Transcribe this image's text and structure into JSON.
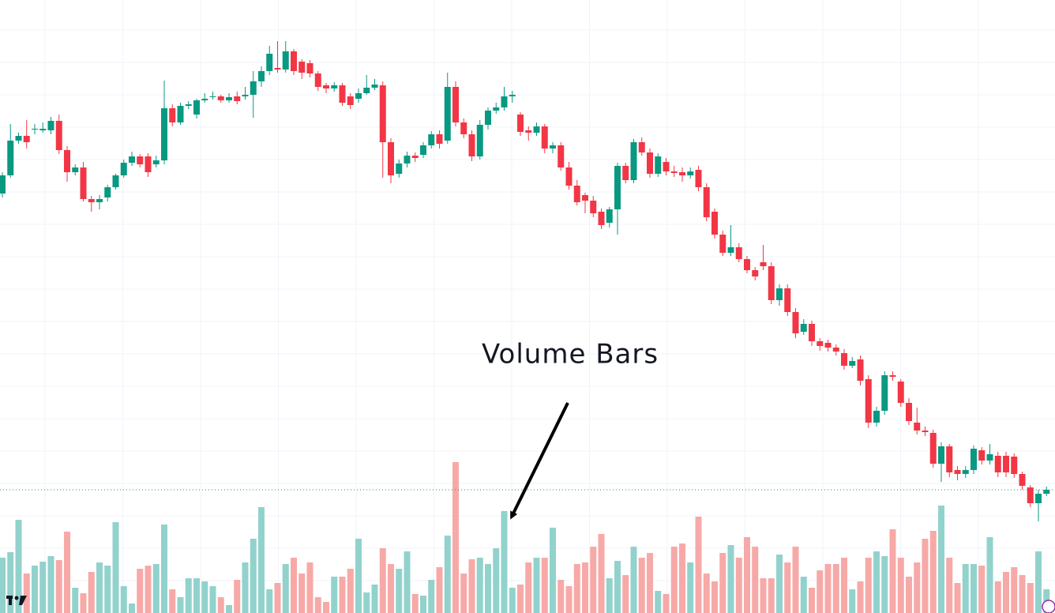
{
  "chart_data": {
    "type": "candlestick",
    "annotation": "Volume Bars",
    "up_color": "#089981",
    "down_color": "#f23645",
    "volume_up_color": "#92d2cc",
    "volume_down_color": "#f7a9a7",
    "ylim": [
      24,
      800
    ],
    "vlim": [
      0,
      776
    ],
    "open": [
      555,
      578,
      622,
      628,
      636,
      635,
      635,
      647,
      610,
      582,
      588,
      548,
      544,
      550,
      563,
      578,
      594,
      602,
      602,
      592,
      597,
      663,
      645,
      666,
      655,
      673,
      677,
      678,
      673,
      678,
      678,
      680,
      697,
      710,
      714,
      712,
      735,
      722,
      720,
      707,
      692,
      688,
      692,
      678,
      675,
      682,
      689,
      692,
      620,
      580,
      593,
      603,
      604,
      616,
      630,
      622,
      690,
      645,
      630,
      602,
      642,
      660,
      664,
      678,
      655,
      635,
      632,
      640,
      612,
      616,
      588,
      565,
      553,
      546,
      532,
      518,
      535,
      590,
      572,
      620,
      607,
      580,
      595,
      583,
      582,
      578,
      585,
      563,
      532,
      503,
      480,
      487,
      472,
      458,
      468,
      463,
      420,
      435,
      405,
      380,
      390,
      368,
      366,
      360,
      353,
      337,
      345,
      320,
      265,
      280,
      325,
      317,
      290,
      265,
      255,
      252,
      213,
      235,
      205,
      200,
      205,
      230,
      217,
      223,
      223,
      222,
      200,
      183,
      163,
      175
    ],
    "high": [
      582,
      643,
      632,
      648,
      643,
      645,
      652,
      655,
      615,
      592,
      595,
      552,
      553,
      566,
      580,
      598,
      608,
      605,
      606,
      603,
      698,
      668,
      670,
      672,
      675,
      682,
      684,
      680,
      682,
      684,
      690,
      710,
      716,
      742,
      748,
      748,
      738,
      725,
      724,
      710,
      695,
      696,
      695,
      682,
      688,
      705,
      700,
      697,
      625,
      598,
      608,
      607,
      620,
      634,
      635,
      708,
      697,
      650,
      635,
      648,
      664,
      670,
      690,
      685,
      658,
      640,
      645,
      643,
      620,
      620,
      595,
      572,
      556,
      552,
      536,
      538,
      594,
      594,
      624,
      626,
      612,
      606,
      600,
      590,
      588,
      588,
      590,
      568,
      536,
      508,
      515,
      492,
      476,
      462,
      490,
      468,
      440,
      440,
      410,
      396,
      394,
      372,
      370,
      364,
      358,
      348,
      350,
      325,
      285,
      330,
      330,
      320,
      296,
      284,
      260,
      256,
      240,
      238,
      210,
      210,
      236,
      234,
      238,
      228,
      228,
      226,
      203,
      186,
      180,
      184
    ],
    "low": [
      550,
      575,
      618,
      612,
      630,
      632,
      630,
      605,
      570,
      578,
      545,
      532,
      535,
      545,
      560,
      575,
      590,
      588,
      576,
      588,
      592,
      640,
      642,
      662,
      650,
      670,
      674,
      670,
      670,
      668,
      674,
      651,
      690,
      705,
      708,
      708,
      705,
      700,
      702,
      685,
      682,
      684,
      666,
      662,
      670,
      680,
      686,
      575,
      568,
      575,
      588,
      595,
      600,
      612,
      612,
      618,
      640,
      625,
      596,
      598,
      636,
      656,
      660,
      670,
      628,
      622,
      628,
      606,
      606,
      584,
      560,
      540,
      530,
      525,
      510,
      512,
      503,
      568,
      568,
      603,
      575,
      576,
      578,
      576,
      570,
      574,
      558,
      520,
      498,
      476,
      476,
      468,
      454,
      445,
      458,
      415,
      413,
      400,
      372,
      376,
      362,
      356,
      355,
      350,
      332,
      334,
      312,
      258,
      260,
      275,
      318,
      285,
      262,
      250,
      248,
      208,
      190,
      196,
      192,
      195,
      200,
      212,
      212,
      196,
      196,
      195,
      180,
      158,
      140,
      172
    ],
    "close": [
      578,
      622,
      628,
      620,
      637,
      637,
      647,
      610,
      582,
      588,
      548,
      544,
      548,
      563,
      578,
      594,
      602,
      592,
      582,
      597,
      663,
      645,
      666,
      668,
      673,
      675,
      678,
      673,
      677,
      672,
      680,
      697,
      710,
      732,
      712,
      735,
      710,
      708,
      707,
      690,
      688,
      692,
      670,
      667,
      682,
      689,
      693,
      620,
      578,
      593,
      603,
      600,
      616,
      630,
      618,
      690,
      645,
      630,
      602,
      642,
      660,
      664,
      678,
      680,
      633,
      632,
      640,
      612,
      616,
      588,
      565,
      544,
      546,
      530,
      515,
      535,
      590,
      572,
      620,
      607,
      580,
      602,
      583,
      581,
      578,
      583,
      563,
      525,
      503,
      480,
      487,
      472,
      458,
      450,
      463,
      420,
      435,
      405,
      378,
      390,
      368,
      362,
      360,
      355,
      337,
      343,
      318,
      265,
      280,
      325,
      323,
      290,
      267,
      255,
      253,
      213,
      235,
      202,
      200,
      205,
      232,
      217,
      225,
      202,
      202,
      200,
      185,
      163,
      175,
      180
    ],
    "volume": [
      70,
      77,
      118,
      50,
      60,
      65,
      72,
      67,
      103,
      32,
      25,
      52,
      64,
      60,
      115,
      34,
      12,
      56,
      60,
      62,
      112,
      30,
      20,
      44,
      44,
      40,
      34,
      20,
      10,
      42,
      64,
      94,
      134,
      30,
      38,
      62,
      70,
      50,
      64,
      20,
      14,
      46,
      46,
      56,
      94,
      26,
      36,
      82,
      62,
      56,
      78,
      24,
      22,
      42,
      58,
      98,
      191,
      50,
      68,
      70,
      62,
      82,
      129,
      32,
      36,
      64,
      70,
      70,
      108,
      42,
      34,
      62,
      64,
      84,
      100,
      44,
      66,
      48,
      84,
      70,
      76,
      28,
      24,
      84,
      88,
      64,
      122,
      50,
      40,
      76,
      86,
      70,
      96,
      84,
      44,
      44,
      74,
      64,
      84,
      46,
      32,
      54,
      62,
      62,
      70,
      30,
      40,
      70,
      78,
      72,
      106,
      70,
      46,
      64,
      94,
      104,
      136,
      70,
      38,
      62,
      62,
      60,
      96,
      40,
      52,
      58,
      48,
      38,
      78,
      30
    ]
  }
}
